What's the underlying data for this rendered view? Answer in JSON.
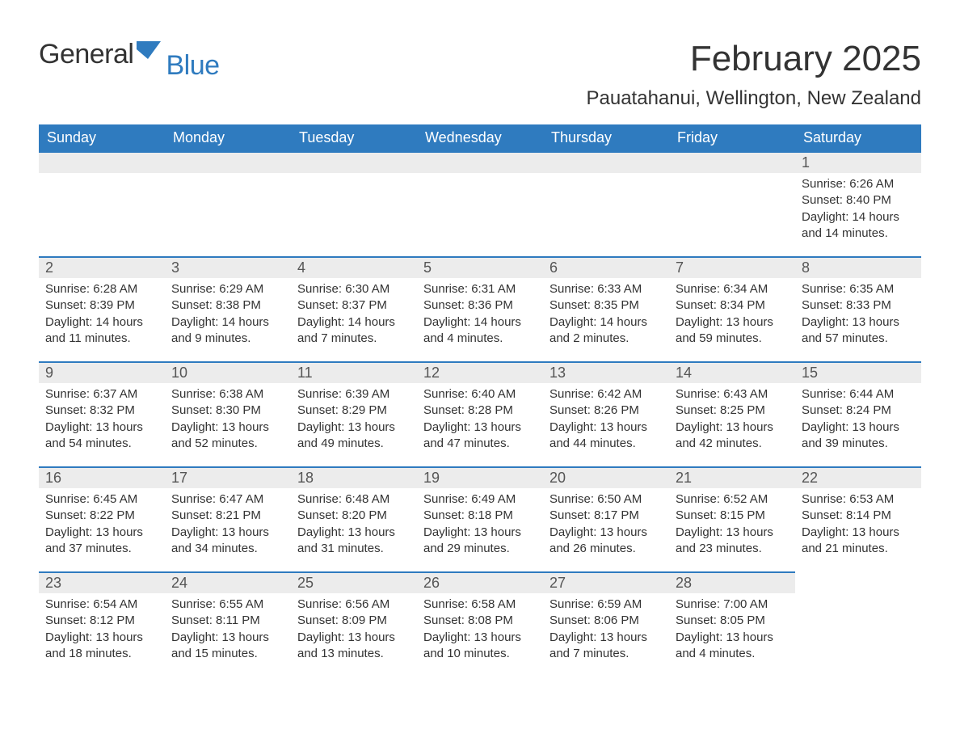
{
  "logo": {
    "text1": "General",
    "text2": "Blue",
    "flag_color": "#2f7bbf"
  },
  "title": "February 2025",
  "location": "Pauatahanui, Wellington, New Zealand",
  "colors": {
    "header_bg": "#2f7bbf",
    "header_text": "#ffffff",
    "daynum_bg": "#ececec",
    "border": "#2f7bbf",
    "body_text": "#333333"
  },
  "weekdays": [
    "Sunday",
    "Monday",
    "Tuesday",
    "Wednesday",
    "Thursday",
    "Friday",
    "Saturday"
  ],
  "weeks": [
    [
      null,
      null,
      null,
      null,
      null,
      null,
      {
        "n": "1",
        "sunrise": "6:26 AM",
        "sunset": "8:40 PM",
        "daylight": "14 hours and 14 minutes."
      }
    ],
    [
      {
        "n": "2",
        "sunrise": "6:28 AM",
        "sunset": "8:39 PM",
        "daylight": "14 hours and 11 minutes."
      },
      {
        "n": "3",
        "sunrise": "6:29 AM",
        "sunset": "8:38 PM",
        "daylight": "14 hours and 9 minutes."
      },
      {
        "n": "4",
        "sunrise": "6:30 AM",
        "sunset": "8:37 PM",
        "daylight": "14 hours and 7 minutes."
      },
      {
        "n": "5",
        "sunrise": "6:31 AM",
        "sunset": "8:36 PM",
        "daylight": "14 hours and 4 minutes."
      },
      {
        "n": "6",
        "sunrise": "6:33 AM",
        "sunset": "8:35 PM",
        "daylight": "14 hours and 2 minutes."
      },
      {
        "n": "7",
        "sunrise": "6:34 AM",
        "sunset": "8:34 PM",
        "daylight": "13 hours and 59 minutes."
      },
      {
        "n": "8",
        "sunrise": "6:35 AM",
        "sunset": "8:33 PM",
        "daylight": "13 hours and 57 minutes."
      }
    ],
    [
      {
        "n": "9",
        "sunrise": "6:37 AM",
        "sunset": "8:32 PM",
        "daylight": "13 hours and 54 minutes."
      },
      {
        "n": "10",
        "sunrise": "6:38 AM",
        "sunset": "8:30 PM",
        "daylight": "13 hours and 52 minutes."
      },
      {
        "n": "11",
        "sunrise": "6:39 AM",
        "sunset": "8:29 PM",
        "daylight": "13 hours and 49 minutes."
      },
      {
        "n": "12",
        "sunrise": "6:40 AM",
        "sunset": "8:28 PM",
        "daylight": "13 hours and 47 minutes."
      },
      {
        "n": "13",
        "sunrise": "6:42 AM",
        "sunset": "8:26 PM",
        "daylight": "13 hours and 44 minutes."
      },
      {
        "n": "14",
        "sunrise": "6:43 AM",
        "sunset": "8:25 PM",
        "daylight": "13 hours and 42 minutes."
      },
      {
        "n": "15",
        "sunrise": "6:44 AM",
        "sunset": "8:24 PM",
        "daylight": "13 hours and 39 minutes."
      }
    ],
    [
      {
        "n": "16",
        "sunrise": "6:45 AM",
        "sunset": "8:22 PM",
        "daylight": "13 hours and 37 minutes."
      },
      {
        "n": "17",
        "sunrise": "6:47 AM",
        "sunset": "8:21 PM",
        "daylight": "13 hours and 34 minutes."
      },
      {
        "n": "18",
        "sunrise": "6:48 AM",
        "sunset": "8:20 PM",
        "daylight": "13 hours and 31 minutes."
      },
      {
        "n": "19",
        "sunrise": "6:49 AM",
        "sunset": "8:18 PM",
        "daylight": "13 hours and 29 minutes."
      },
      {
        "n": "20",
        "sunrise": "6:50 AM",
        "sunset": "8:17 PM",
        "daylight": "13 hours and 26 minutes."
      },
      {
        "n": "21",
        "sunrise": "6:52 AM",
        "sunset": "8:15 PM",
        "daylight": "13 hours and 23 minutes."
      },
      {
        "n": "22",
        "sunrise": "6:53 AM",
        "sunset": "8:14 PM",
        "daylight": "13 hours and 21 minutes."
      }
    ],
    [
      {
        "n": "23",
        "sunrise": "6:54 AM",
        "sunset": "8:12 PM",
        "daylight": "13 hours and 18 minutes."
      },
      {
        "n": "24",
        "sunrise": "6:55 AM",
        "sunset": "8:11 PM",
        "daylight": "13 hours and 15 minutes."
      },
      {
        "n": "25",
        "sunrise": "6:56 AM",
        "sunset": "8:09 PM",
        "daylight": "13 hours and 13 minutes."
      },
      {
        "n": "26",
        "sunrise": "6:58 AM",
        "sunset": "8:08 PM",
        "daylight": "13 hours and 10 minutes."
      },
      {
        "n": "27",
        "sunrise": "6:59 AM",
        "sunset": "8:06 PM",
        "daylight": "13 hours and 7 minutes."
      },
      {
        "n": "28",
        "sunrise": "7:00 AM",
        "sunset": "8:05 PM",
        "daylight": "13 hours and 4 minutes."
      },
      null
    ]
  ],
  "labels": {
    "sunrise": "Sunrise: ",
    "sunset": "Sunset: ",
    "daylight": "Daylight: "
  }
}
